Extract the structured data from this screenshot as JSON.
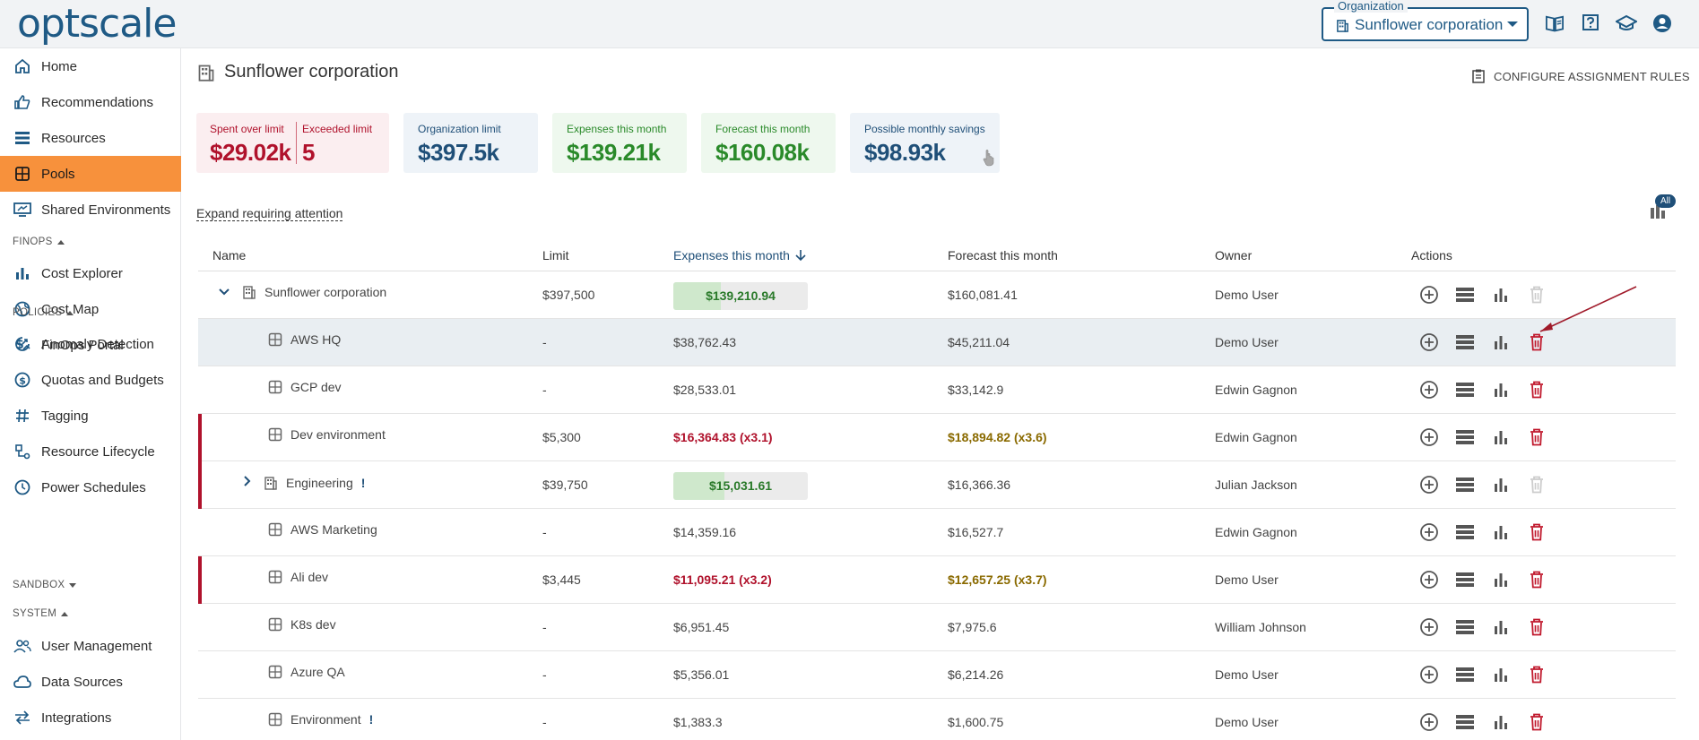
{
  "topbar": {
    "logo": "optscale",
    "org_legend": "Organization",
    "org_value": "Sunflower corporation",
    "icons": [
      "book-icon",
      "help-icon",
      "graduation-cap-icon",
      "account-icon"
    ]
  },
  "sidebar": {
    "items_top": [
      {
        "label": "Home",
        "icon": "home-icon"
      },
      {
        "label": "Recommendations",
        "icon": "thumbs-up-icon"
      },
      {
        "label": "Resources",
        "icon": "list-icon"
      },
      {
        "label": "Pools",
        "icon": "pools-icon",
        "active": true
      },
      {
        "label": "Shared Environments",
        "icon": "monitor-icon"
      }
    ],
    "sections": {
      "finops": "FINOPS",
      "policies": "POLICIES",
      "sandbox": "SANDBOX",
      "system": "SYSTEM"
    },
    "finops_items": [
      {
        "label": "Cost Explorer",
        "icon": "bar-chart-icon"
      },
      {
        "label": "Cost Map",
        "icon": "globe-icon"
      },
      {
        "label": "FinOps Portal",
        "icon": "dollar-icon"
      }
    ],
    "policies_items": [
      {
        "label": "Anomaly Detection",
        "icon": "anomaly-icon"
      },
      {
        "label": "Quotas and Budgets",
        "icon": "money-icon"
      },
      {
        "label": "Tagging",
        "icon": "hash-icon"
      },
      {
        "label": "Resource Lifecycle",
        "icon": "lifecycle-icon"
      },
      {
        "label": "Power Schedules",
        "icon": "clock-icon"
      }
    ],
    "system_items": [
      {
        "label": "User Management",
        "icon": "users-icon"
      },
      {
        "label": "Data Sources",
        "icon": "cloud-icon"
      },
      {
        "label": "Integrations",
        "icon": "arrows-icon"
      }
    ]
  },
  "main": {
    "title": "Sunflower corporation",
    "configure_label": "CONFIGURE ASSIGNMENT RULES",
    "cards": {
      "spent_over_limit": {
        "label": "Spent over limit",
        "value": "$29.02k"
      },
      "exceeded_limit": {
        "label": "Exceeded limit",
        "value": "5"
      },
      "org_limit": {
        "label": "Organization limit",
        "value": "$397.5k"
      },
      "expenses": {
        "label": "Expenses this month",
        "value": "$139.21k"
      },
      "forecast": {
        "label": "Forecast this month",
        "value": "$160.08k"
      },
      "savings": {
        "label": "Possible monthly savings",
        "value": "$98.93k"
      }
    },
    "expand_label": "Expand requiring attention",
    "all_badge": "All",
    "table": {
      "headers": {
        "name": "Name",
        "limit": "Limit",
        "expenses": "Expenses this month",
        "forecast": "Forecast this month",
        "owner": "Owner",
        "actions": "Actions"
      },
      "rows": [
        {
          "name": "Sunflower corporation",
          "limit": "$397,500",
          "expenses": "$139,210.94",
          "forecast": "$160,081.41",
          "owner": "Demo User"
        },
        {
          "name": "AWS HQ",
          "limit": "-",
          "expenses": "$38,762.43",
          "forecast": "$45,211.04",
          "owner": "Demo User"
        },
        {
          "name": "GCP dev",
          "limit": "-",
          "expenses": "$28,533.01",
          "forecast": "$33,142.9",
          "owner": "Edwin Gagnon"
        },
        {
          "name": "Dev environment",
          "limit": "$5,300",
          "expenses": "$16,364.83 (x3.1)",
          "forecast": "$18,894.82 (x3.6)",
          "owner": "Edwin Gagnon"
        },
        {
          "name": "Engineering",
          "warn": "!",
          "limit": "$39,750",
          "expenses": "$15,031.61",
          "forecast": "$16,366.36",
          "owner": "Julian Jackson"
        },
        {
          "name": "AWS Marketing",
          "limit": "-",
          "expenses": "$14,359.16",
          "forecast": "$16,527.7",
          "owner": "Edwin Gagnon"
        },
        {
          "name": "Ali dev",
          "limit": "$3,445",
          "expenses": "$11,095.21 (x3.2)",
          "forecast": "$12,657.25 (x3.7)",
          "owner": "Demo User"
        },
        {
          "name": "K8s dev",
          "limit": "-",
          "expenses": "$6,951.45",
          "forecast": "$7,975.6",
          "owner": "William Johnson"
        },
        {
          "name": "Azure QA",
          "limit": "-",
          "expenses": "$5,356.01",
          "forecast": "$6,214.26",
          "owner": "Demo User"
        },
        {
          "name": "Environment",
          "warn": "!",
          "limit": "-",
          "expenses": "$1,383.3",
          "forecast": "$1,600.75",
          "owner": "Demo User"
        }
      ],
      "usage_fractions": {
        "sunflower": 0.35,
        "engineering": 0.38
      }
    }
  },
  "colors": {
    "accent": "#f7913c",
    "brand": "#1f5a85",
    "danger": "#b0122c",
    "success": "#2a8a2a",
    "warning": "#8a6a00"
  }
}
